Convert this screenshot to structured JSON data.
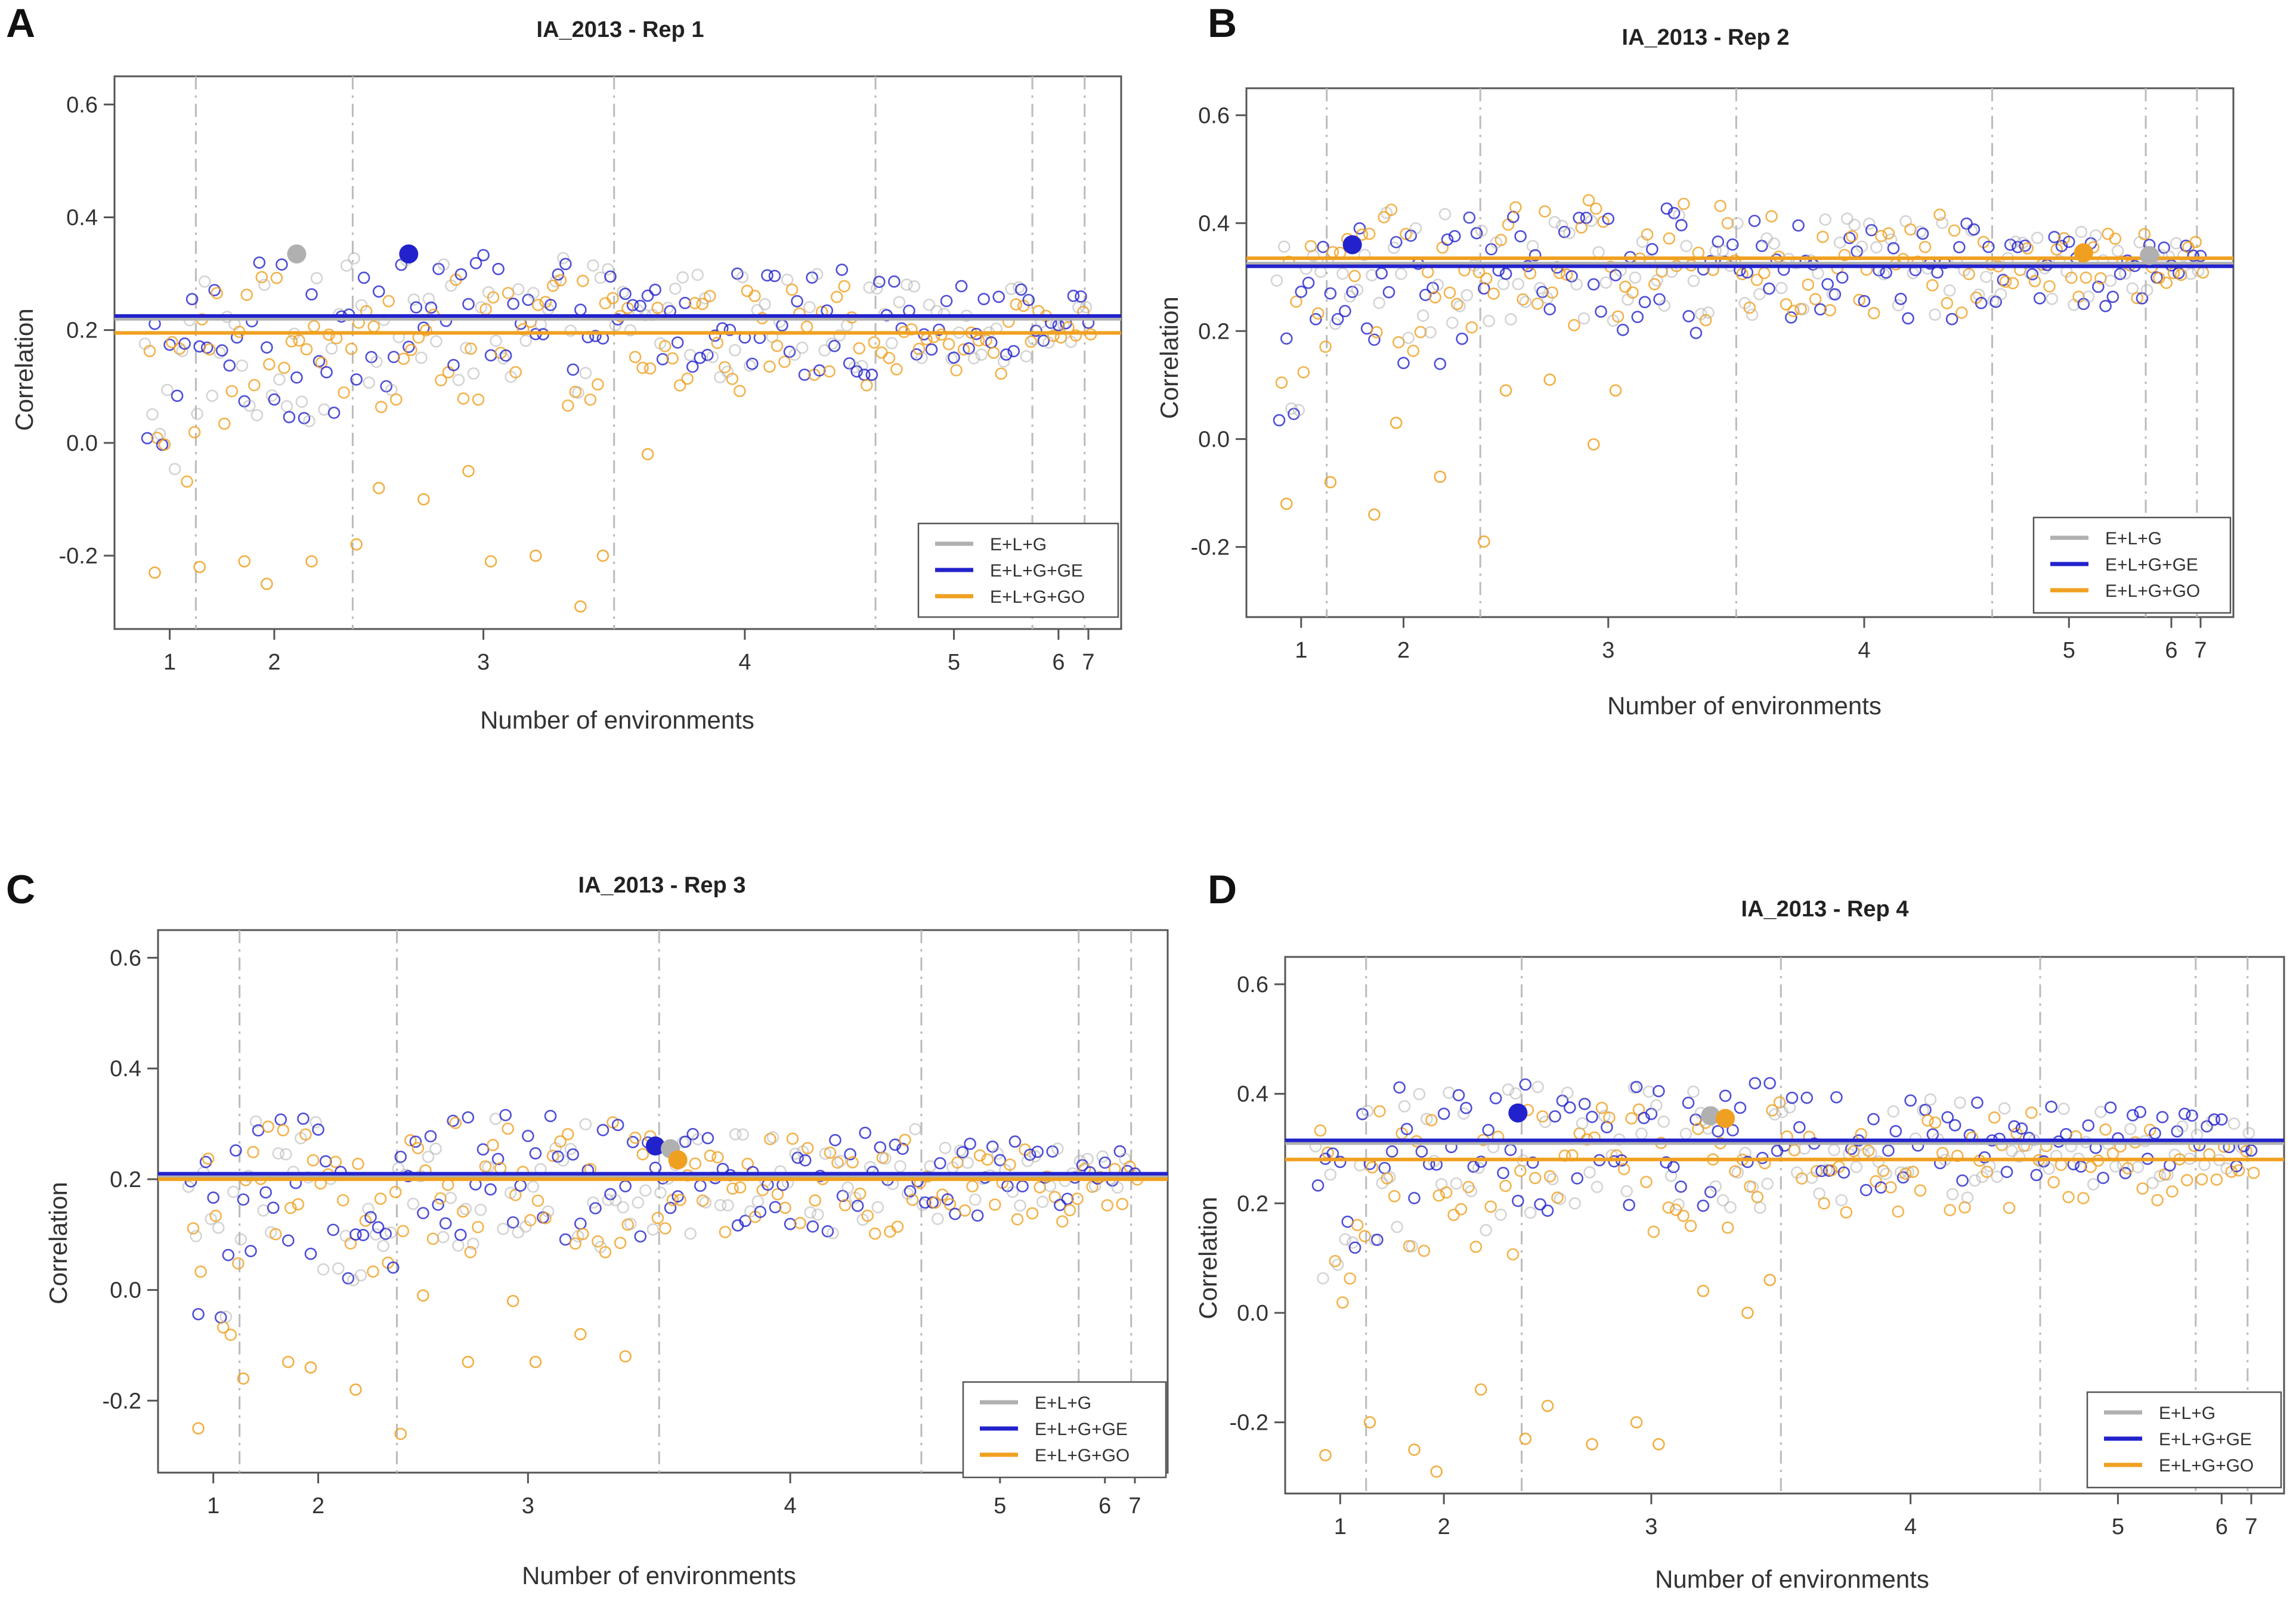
{
  "colors": {
    "elg": "#b0b0b0",
    "elgge": "#2222cc",
    "elggo": "#f0a020",
    "frame": "#555555",
    "vline": "#bbbbbb"
  },
  "chart_data": [
    {
      "panel": "A",
      "type": "scatter",
      "title": "IA_2013 - Rep 1",
      "xlabel": "Number of environments",
      "ylabel": "Correlation",
      "ylim": [
        -0.33,
        0.65
      ],
      "yticks": [
        "0.6",
        "0.4",
        "0.2",
        "0.0",
        "-0.2"
      ],
      "xticks": [
        "1",
        "2",
        "3",
        "4",
        "5",
        "6",
        "7"
      ],
      "group_sizes": [
        7,
        21,
        35,
        35,
        21,
        7,
        1
      ],
      "hlines": {
        "E+L+G": 0.22,
        "E+L+G+GE": 0.225,
        "E+L+G+GO": 0.195
      },
      "best_points": [
        {
          "series": "E+L+G",
          "index": 20,
          "value": 0.335
        },
        {
          "series": "E+L+G+GE",
          "index": 35,
          "value": 0.335
        }
      ],
      "low_outliers": [
        -0.23,
        -0.22,
        -0.21,
        -0.25,
        -0.21,
        -0.18,
        -0.08,
        -0.1,
        -0.05,
        -0.21,
        -0.2,
        -0.29,
        -0.2,
        -0.02
      ],
      "legend": [
        "E+L+G",
        "E+L+G+GE",
        "E+L+G+GO"
      ]
    },
    {
      "panel": "B",
      "type": "scatter",
      "title": "IA_2013 - Rep 2",
      "xlabel": "Number of environments",
      "ylabel": "Correlation",
      "ylim": [
        -0.33,
        0.65
      ],
      "yticks": [
        "0.6",
        "0.4",
        "0.2",
        "0.0",
        "-0.2"
      ],
      "xticks": [
        "1",
        "2",
        "3",
        "4",
        "5",
        "6",
        "7"
      ],
      "group_sizes": [
        7,
        21,
        35,
        35,
        21,
        7,
        1
      ],
      "hlines": {
        "E+L+G": 0.325,
        "E+L+G+GE": 0.32,
        "E+L+G+GO": 0.335
      },
      "best_points": [
        {
          "series": "E+L+G+GE",
          "index": 10,
          "value": 0.36
        },
        {
          "series": "E+L+G+GO",
          "index": 110,
          "value": 0.345
        },
        {
          "series": "E+L+G",
          "index": 119,
          "value": 0.34
        }
      ],
      "low_outliers": [
        -0.12,
        -0.08,
        -0.14,
        0.03,
        -0.07,
        -0.19,
        0.09,
        0.11,
        -0.01,
        0.09
      ],
      "legend": [
        "E+L+G",
        "E+L+G+GE",
        "E+L+G+GO"
      ]
    },
    {
      "panel": "C",
      "type": "scatter",
      "title": "IA_2013 - Rep 3",
      "xlabel": "Number of environments",
      "ylabel": "Correlation",
      "ylim": [
        -0.33,
        0.65
      ],
      "yticks": [
        "0.6",
        "0.4",
        "0.2",
        "0.0",
        "-0.2"
      ],
      "xticks": [
        "1",
        "2",
        "3",
        "4",
        "5",
        "6",
        "7"
      ],
      "group_sizes": [
        7,
        21,
        35,
        35,
        21,
        7,
        1
      ],
      "hlines": {
        "E+L+G": 0.205,
        "E+L+G+GE": 0.21,
        "E+L+G+GO": 0.2
      },
      "best_points": [
        {
          "series": "E+L+G+GE",
          "index": 62,
          "value": 0.26
        },
        {
          "series": "E+L+G",
          "index": 64,
          "value": 0.255
        },
        {
          "series": "E+L+G+GO",
          "index": 65,
          "value": 0.235
        }
      ],
      "low_outliers": [
        -0.25,
        -0.16,
        -0.13,
        -0.14,
        -0.18,
        -0.26,
        -0.01,
        -0.13,
        -0.02,
        -0.13,
        -0.08,
        -0.12
      ],
      "legend": [
        "E+L+G",
        "E+L+G+GE",
        "E+L+G+GO"
      ]
    },
    {
      "panel": "D",
      "type": "scatter",
      "title": "IA_2013 - Rep 4",
      "xlabel": "Number of environments",
      "ylabel": "Correlation",
      "ylim": [
        -0.33,
        0.65
      ],
      "yticks": [
        "0.6",
        "0.4",
        "0.2",
        "0.0",
        "-0.2"
      ],
      "xticks": [
        "1",
        "2",
        "3",
        "4",
        "5",
        "6",
        "7"
      ],
      "group_sizes": [
        7,
        21,
        35,
        35,
        21,
        7,
        1
      ],
      "hlines": {
        "E+L+G": 0.31,
        "E+L+G+GE": 0.315,
        "E+L+G+GO": 0.28
      },
      "best_points": [
        {
          "series": "E+L+G+GE",
          "index": 27,
          "value": 0.365
        },
        {
          "series": "E+L+G",
          "index": 53,
          "value": 0.36
        },
        {
          "series": "E+L+G+GO",
          "index": 55,
          "value": 0.355
        }
      ],
      "low_outliers": [
        -0.26,
        -0.2,
        -0.25,
        -0.29,
        -0.14,
        -0.23,
        -0.17,
        -0.24,
        -0.2,
        -0.24,
        0.04,
        0.0,
        0.06
      ],
      "legend": [
        "E+L+G",
        "E+L+G+GE",
        "E+L+G+GO"
      ]
    }
  ]
}
